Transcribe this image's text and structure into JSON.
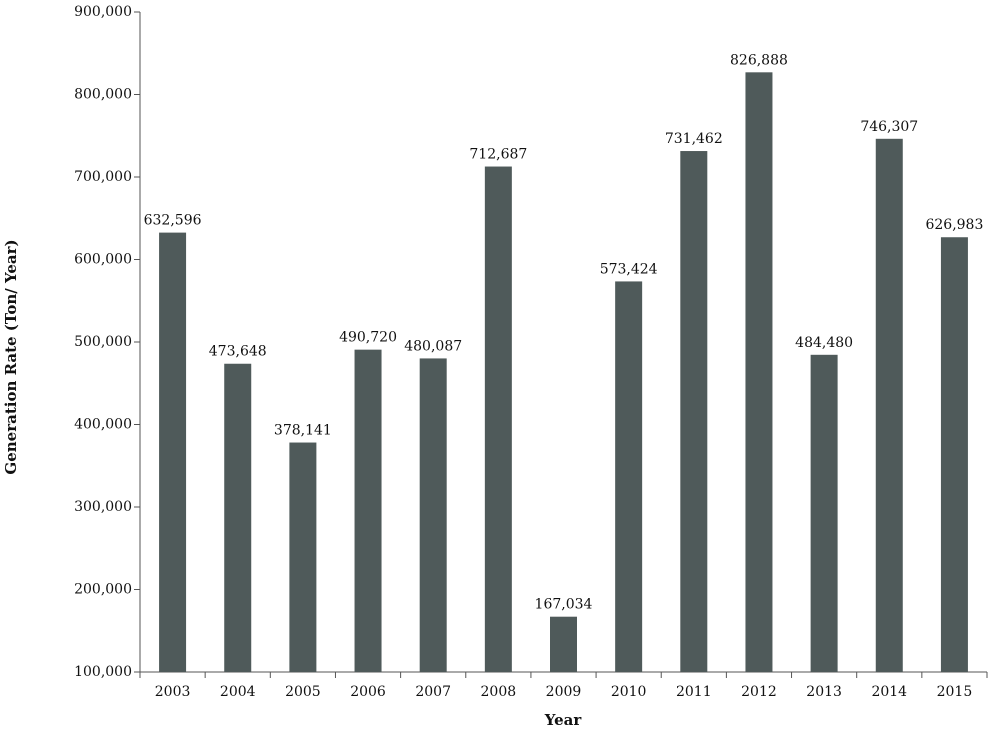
{
  "chart_data": {
    "type": "bar",
    "x_label": "Year",
    "y_label": "Generation Rate (Ton/ Year)",
    "categories": [
      "2003",
      "2004",
      "2005",
      "2006",
      "2007",
      "2008",
      "2009",
      "2010",
      "2011",
      "2012",
      "2013",
      "2014",
      "2015"
    ],
    "values": [
      632596,
      473648,
      378141,
      490720,
      480087,
      712687,
      167034,
      573424,
      731462,
      826888,
      484480,
      746307,
      626983
    ],
    "value_labels": [
      "632,596",
      "473,648",
      "378,141",
      "490,720",
      "480,087",
      "712,687",
      "167,034",
      "573,424",
      "731,462",
      "826,888",
      "484,480",
      "746,307",
      "626,983"
    ],
    "color": "#4f5a5a",
    "ylim": [
      100000,
      900000
    ],
    "yticks": [
      {
        "value": 100000,
        "label": "100,000"
      },
      {
        "value": 200000,
        "label": "200,000"
      },
      {
        "value": 300000,
        "label": "300,000"
      },
      {
        "value": 400000,
        "label": "400,000"
      },
      {
        "value": 500000,
        "label": "500,000"
      },
      {
        "value": 600000,
        "label": "600,000"
      },
      {
        "value": 700000,
        "label": "700,000"
      },
      {
        "value": 800000,
        "label": "800,000"
      },
      {
        "value": 900000,
        "label": "900,000"
      }
    ],
    "grid": false
  }
}
